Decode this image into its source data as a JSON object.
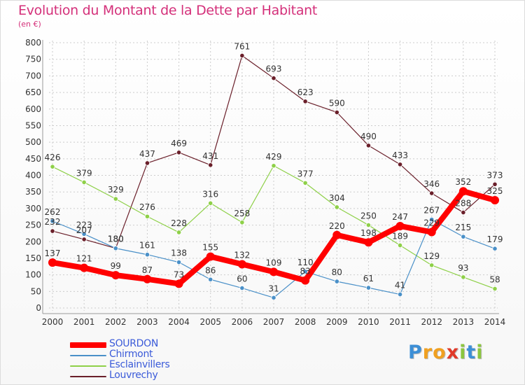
{
  "chart_data": {
    "type": "line",
    "title": "Evolution du Montant de la Dette par Habitant",
    "subtitle": "(en €)",
    "x": [
      "2000",
      "2001",
      "2002",
      "2003",
      "2004",
      "2005",
      "2006",
      "2007",
      "2008",
      "2009",
      "2010",
      "2011",
      "2012",
      "2013",
      "2014"
    ],
    "ylim": [
      0,
      800
    ],
    "yticks": [
      0,
      50,
      100,
      150,
      200,
      250,
      300,
      350,
      400,
      450,
      500,
      550,
      600,
      650,
      700,
      750,
      800
    ],
    "grid": true,
    "legend_position": "bottom-left",
    "series": [
      {
        "name": "SOURDON",
        "color": "#ff0000",
        "values": [
          137,
          121,
          99,
          87,
          73,
          155,
          132,
          109,
          83,
          220,
          198,
          247,
          229,
          352,
          325
        ]
      },
      {
        "name": "Chirmont",
        "color": "#4a90c8",
        "values": [
          262,
          223,
          180,
          161,
          138,
          86,
          60,
          31,
          110,
          80,
          61,
          41,
          267,
          215,
          179
        ]
      },
      {
        "name": "Esclainvillers",
        "color": "#8ed048",
        "values": [
          426,
          379,
          329,
          276,
          228,
          316,
          258,
          429,
          377,
          304,
          250,
          189,
          129,
          93,
          58
        ]
      },
      {
        "name": "Louvrechy",
        "color": "#6a1f2a",
        "values": [
          232,
          207,
          180,
          437,
          469,
          431,
          761,
          693,
          623,
          590,
          490,
          433,
          346,
          288,
          373
        ]
      }
    ]
  },
  "logo": {
    "letters": [
      {
        "ch": "P",
        "color": "#3d8fd6"
      },
      {
        "ch": "r",
        "color": "#f0a020"
      },
      {
        "ch": "o",
        "color": "#f0a020"
      },
      {
        "ch": "x",
        "color": "#e03a2a"
      },
      {
        "ch": "i",
        "color": "#8cc63f"
      },
      {
        "ch": "t",
        "color": "#3d8fd6"
      },
      {
        "ch": "i",
        "color": "#8cc63f"
      }
    ]
  }
}
